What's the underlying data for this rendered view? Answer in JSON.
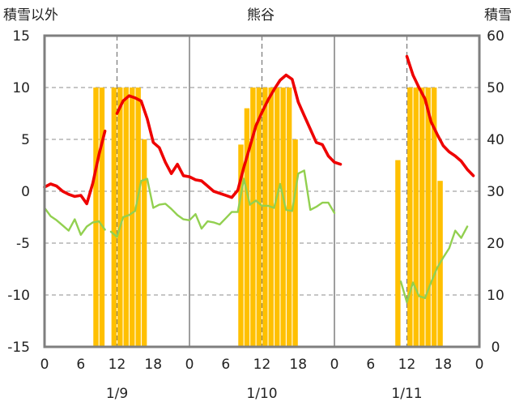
{
  "chart_data": {
    "type": "bar+line",
    "title": "熊谷",
    "y_left_label": "積雪以外",
    "y_right_label": "積雪",
    "y_left_range": [
      -15,
      15
    ],
    "y_right_range": [
      0,
      60
    ],
    "y_left_ticks": [
      "15",
      "10",
      "5",
      "0",
      "-5",
      "-10",
      "-15"
    ],
    "y_right_ticks": [
      "60",
      "50",
      "40",
      "30",
      "20",
      "10",
      "0"
    ],
    "x_range_hours": [
      0,
      72
    ],
    "x_tick_labels": [
      "0",
      "6",
      "12",
      "18",
      "0",
      "6",
      "12",
      "18",
      "0",
      "6",
      "12",
      "18",
      "0"
    ],
    "x_tick_hours": [
      0,
      6,
      12,
      18,
      24,
      30,
      36,
      42,
      48,
      54,
      60,
      66,
      72
    ],
    "day_labels": [
      {
        "text": "1/9",
        "hour": 12
      },
      {
        "text": "1/10",
        "hour": 36
      },
      {
        "text": "1/11",
        "hour": 60
      }
    ],
    "grid": "dashed vertical at 12h, solid day separators, dashed horizontal",
    "colors": {
      "snow": "#ffc000",
      "red": "#ee0000",
      "green": "#92d050",
      "purple": "#7030a0",
      "frame": "#7f7f7f"
    },
    "snow_depth_bars": [
      {
        "hour": 8,
        "value": 50
      },
      {
        "hour": 9,
        "value": 50
      },
      {
        "hour": 11,
        "value": 50
      },
      {
        "hour": 12,
        "value": 50
      },
      {
        "hour": 13,
        "value": 50
      },
      {
        "hour": 14,
        "value": 50
      },
      {
        "hour": 15,
        "value": 50
      },
      {
        "hour": 16,
        "value": 40
      },
      {
        "hour": 32,
        "value": 39
      },
      {
        "hour": 33,
        "value": 46
      },
      {
        "hour": 34,
        "value": 50
      },
      {
        "hour": 35,
        "value": 50
      },
      {
        "hour": 36,
        "value": 50
      },
      {
        "hour": 37,
        "value": 50
      },
      {
        "hour": 38,
        "value": 50
      },
      {
        "hour": 39,
        "value": 50
      },
      {
        "hour": 40,
        "value": 50
      },
      {
        "hour": 41,
        "value": 40
      },
      {
        "hour": 58,
        "value": 36
      },
      {
        "hour": 60,
        "value": 50
      },
      {
        "hour": 61,
        "value": 50
      },
      {
        "hour": 62,
        "value": 50
      },
      {
        "hour": 63,
        "value": 50
      },
      {
        "hour": 64,
        "value": 50
      },
      {
        "hour": 65,
        "value": 32
      }
    ],
    "series": [
      {
        "color": "red",
        "segments": [
          [
            [
              0,
              0.4
            ],
            [
              1,
              0.7
            ],
            [
              2,
              0.5
            ],
            [
              3,
              0.0
            ],
            [
              4,
              -0.3
            ],
            [
              5,
              -0.5
            ],
            [
              6,
              -0.4
            ],
            [
              7,
              -1.2
            ],
            [
              8,
              0.8
            ],
            [
              9,
              3.5
            ],
            [
              10,
              5.8
            ]
          ],
          [
            [
              12,
              7.5
            ],
            [
              13,
              8.7
            ],
            [
              14,
              9.2
            ],
            [
              15,
              9.0
            ],
            [
              16,
              8.7
            ],
            [
              17,
              7.0
            ],
            [
              18,
              4.7
            ],
            [
              19,
              4.2
            ],
            [
              20,
              2.8
            ],
            [
              21,
              1.7
            ],
            [
              22,
              2.6
            ],
            [
              23,
              1.5
            ],
            [
              24,
              1.4
            ],
            [
              25,
              1.1
            ],
            [
              26,
              1.0
            ],
            [
              27,
              0.5
            ],
            [
              28,
              0.0
            ],
            [
              29,
              -0.2
            ],
            [
              30,
              -0.4
            ],
            [
              31,
              -0.6
            ],
            [
              32,
              0.1
            ],
            [
              33,
              2.3
            ],
            [
              34,
              4.3
            ],
            [
              35,
              6.3
            ],
            [
              36,
              7.6
            ],
            [
              37,
              8.8
            ],
            [
              38,
              9.8
            ],
            [
              39,
              10.7
            ],
            [
              40,
              11.2
            ],
            [
              41,
              10.8
            ],
            [
              42,
              8.6
            ],
            [
              43,
              7.3
            ],
            [
              44,
              6.0
            ],
            [
              45,
              4.7
            ],
            [
              46,
              4.5
            ],
            [
              47,
              3.4
            ],
            [
              48,
              2.8
            ],
            [
              49,
              2.6
            ]
          ],
          [
            [
              60,
              13.0
            ],
            [
              61,
              11.2
            ],
            [
              62,
              10.0
            ],
            [
              63,
              8.9
            ],
            [
              64,
              6.7
            ],
            [
              65,
              5.5
            ],
            [
              66,
              4.4
            ],
            [
              67,
              3.8
            ],
            [
              68,
              3.4
            ],
            [
              69,
              2.9
            ],
            [
              70,
              2.1
            ],
            [
              71,
              1.5
            ]
          ]
        ]
      },
      {
        "color": "green",
        "segments": [
          [
            [
              0,
              -1.6
            ],
            [
              1,
              -2.4
            ],
            [
              2,
              -2.8
            ],
            [
              3,
              -3.3
            ],
            [
              4,
              -3.8
            ],
            [
              5,
              -2.7
            ],
            [
              6,
              -4.2
            ],
            [
              7,
              -3.4
            ],
            [
              8,
              -3.0
            ],
            [
              9,
              -2.9
            ],
            [
              10,
              -3.7
            ]
          ],
          [
            [
              11,
              -3.9
            ],
            [
              12,
              -4.4
            ],
            [
              13,
              -2.5
            ],
            [
              14,
              -2.3
            ],
            [
              15,
              -1.9
            ],
            [
              16,
              1.0
            ],
            [
              17,
              1.2
            ],
            [
              18,
              -1.6
            ],
            [
              19,
              -1.3
            ],
            [
              20,
              -1.2
            ],
            [
              21,
              -1.7
            ],
            [
              22,
              -2.3
            ],
            [
              23,
              -2.7
            ],
            [
              24,
              -2.8
            ],
            [
              25,
              -2.2
            ],
            [
              26,
              -3.6
            ],
            [
              27,
              -2.9
            ],
            [
              28,
              -3.0
            ],
            [
              29,
              -3.2
            ],
            [
              30,
              -2.6
            ],
            [
              31,
              -2.0
            ],
            [
              32,
              -2.0
            ],
            [
              33,
              1.2
            ],
            [
              34,
              -1.3
            ],
            [
              35,
              -0.9
            ],
            [
              36,
              -1.4
            ],
            [
              37,
              -1.4
            ],
            [
              38,
              -1.6
            ],
            [
              39,
              0.7
            ],
            [
              40,
              -1.8
            ],
            [
              41,
              -1.9
            ],
            [
              42,
              1.7
            ],
            [
              43,
              2.0
            ],
            [
              44,
              -1.8
            ],
            [
              45,
              -1.5
            ],
            [
              46,
              -1.1
            ],
            [
              47,
              -1.1
            ],
            [
              48,
              -2.1
            ]
          ],
          [
            [
              59,
              -8.7
            ],
            [
              60,
              -10.7
            ],
            [
              61,
              -8.8
            ],
            [
              62,
              -10.1
            ],
            [
              63,
              -10.3
            ],
            [
              64,
              -8.8
            ],
            [
              65,
              -7.4
            ],
            [
              66,
              -6.4
            ],
            [
              67,
              -5.5
            ],
            [
              68,
              -3.8
            ],
            [
              69,
              -4.5
            ],
            [
              70,
              -3.4
            ]
          ]
        ]
      },
      {
        "color": "purple",
        "segments": [
          [
            [
              0,
              -15
            ],
            [
              71,
              -15
            ]
          ]
        ]
      }
    ]
  }
}
